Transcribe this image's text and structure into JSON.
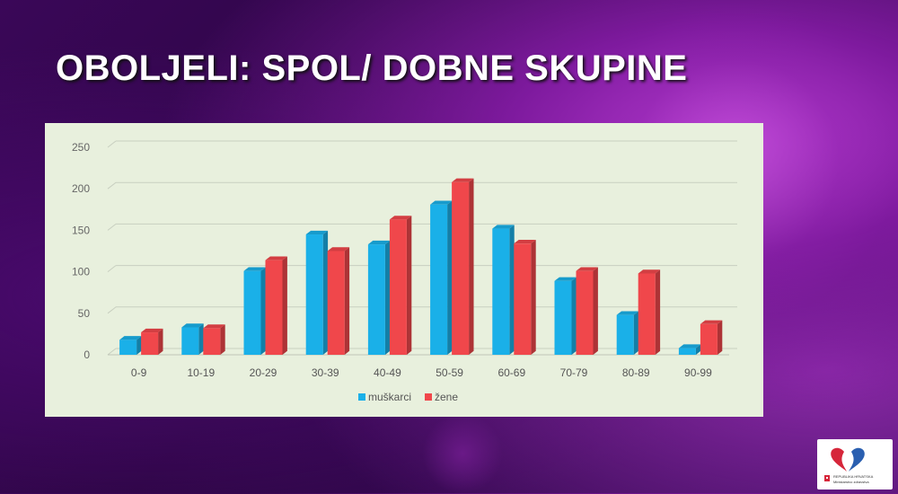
{
  "slide": {
    "title": "OBOLJELI: SPOL/ DOBNE SKUPINE"
  },
  "colors": {
    "muskarci": "#1ab0e8",
    "zene": "#f0474b",
    "panel": "#e8f0dd"
  },
  "logo": {
    "text_line1": "REPUBLIKA HRVATSKA",
    "text_line2": "Ministarstvo zdravstva"
  },
  "chart_data": {
    "type": "bar",
    "categories": [
      "0-9",
      "10-19",
      "20-29",
      "30-39",
      "40-49",
      "50-59",
      "60-69",
      "70-79",
      "80-89",
      "90-99"
    ],
    "series": [
      {
        "name": "muškarci",
        "values": [
          18,
          33,
          101,
          145,
          133,
          181,
          152,
          89,
          48,
          8
        ]
      },
      {
        "name": "žene",
        "values": [
          27,
          32,
          114,
          125,
          163,
          208,
          134,
          101,
          98,
          37
        ]
      }
    ],
    "y_ticks": [
      0,
      50,
      100,
      150,
      200,
      250
    ],
    "ylim": [
      0,
      250
    ],
    "grid": true,
    "legend_position": "bottom",
    "three_d": true
  }
}
